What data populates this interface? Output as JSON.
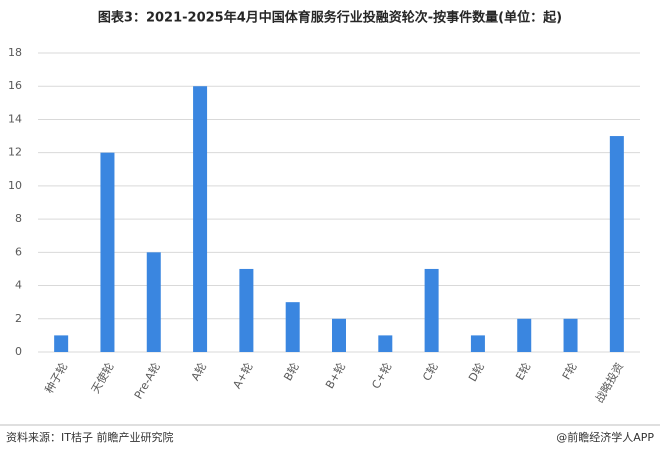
{
  "chart_data": {
    "type": "bar",
    "title": "图表3：2021-2025年4月中国体育服务行业投融资轮次-按事件数量(单位：起)",
    "categories": [
      "种子轮",
      "天使轮",
      "Pre-A轮",
      "A轮",
      "A+轮",
      "B轮",
      "B+轮",
      "C+轮",
      "C轮",
      "D轮",
      "E轮",
      "F轮",
      "战略投资"
    ],
    "values": [
      1,
      12,
      6,
      16,
      5,
      3,
      2,
      1,
      5,
      1,
      2,
      2,
      13
    ],
    "color": "#3a86e0",
    "ylim": [
      0,
      18
    ],
    "yticks": [
      0,
      2,
      4,
      6,
      8,
      10,
      12,
      14,
      16,
      18
    ],
    "grid": true,
    "source": "资料来源：IT桔子 前瞻产业研究院",
    "credit": "@前瞻经济学人APP"
  }
}
